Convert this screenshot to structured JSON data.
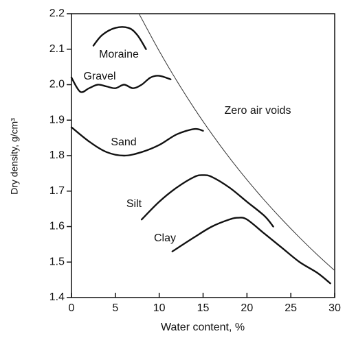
{
  "chart_data": {
    "type": "line",
    "xlabel": "Water content, %",
    "ylabel": "Dry density, g/cm³",
    "xlim": [
      0,
      30
    ],
    "ylim": [
      1.4,
      2.2
    ],
    "xticks": [
      0,
      5,
      10,
      15,
      20,
      25,
      30
    ],
    "yticks": [
      1.4,
      1.5,
      1.6,
      1.7,
      1.8,
      1.9,
      {
        "value": 2,
        "label": "2.0"
      },
      2.1,
      2.2
    ],
    "series": [
      {
        "name": "Moraine",
        "color": "#111111",
        "x": [
          2.5,
          3.5,
          5,
          6.5,
          7.5,
          8.5
        ],
        "values": [
          2.11,
          2.14,
          2.16,
          2.16,
          2.14,
          2.1
        ]
      },
      {
        "name": "Gravel",
        "color": "#111111",
        "x": [
          0,
          1,
          2,
          3,
          4,
          5,
          6,
          7,
          8,
          9,
          10,
          11.3
        ],
        "values": [
          2.02,
          1.98,
          1.99,
          2.0,
          1.995,
          1.99,
          2.0,
          1.99,
          2.0,
          2.02,
          2.025,
          2.015
        ]
      },
      {
        "name": "Sand",
        "color": "#111111",
        "x": [
          0,
          2,
          4,
          6,
          8,
          10,
          12,
          14,
          15
        ],
        "values": [
          1.88,
          1.84,
          1.81,
          1.8,
          1.81,
          1.83,
          1.86,
          1.875,
          1.87
        ]
      },
      {
        "name": "Silt",
        "color": "#111111",
        "x": [
          8,
          10,
          12,
          14,
          15,
          16,
          18,
          20,
          22,
          23
        ],
        "values": [
          1.62,
          1.67,
          1.71,
          1.74,
          1.745,
          1.74,
          1.71,
          1.67,
          1.63,
          1.6
        ]
      },
      {
        "name": "Clay",
        "color": "#111111",
        "x": [
          11.5,
          14,
          16,
          18,
          19,
          20,
          22,
          24,
          26,
          28,
          29.5
        ],
        "values": [
          1.53,
          1.57,
          1.6,
          1.62,
          1.625,
          1.62,
          1.58,
          1.54,
          1.5,
          1.47,
          1.44
        ]
      },
      {
        "name": "Zero air voids",
        "color": "#333333",
        "x": [
          7.7,
          8,
          10,
          12,
          14,
          16,
          18,
          20,
          22,
          24,
          26,
          28,
          30
        ],
        "values": [
          2.2,
          2.186,
          2.095,
          2.011,
          1.933,
          1.861,
          1.794,
          1.732,
          1.674,
          1.62,
          1.569,
          1.521,
          1.476
        ]
      }
    ]
  }
}
